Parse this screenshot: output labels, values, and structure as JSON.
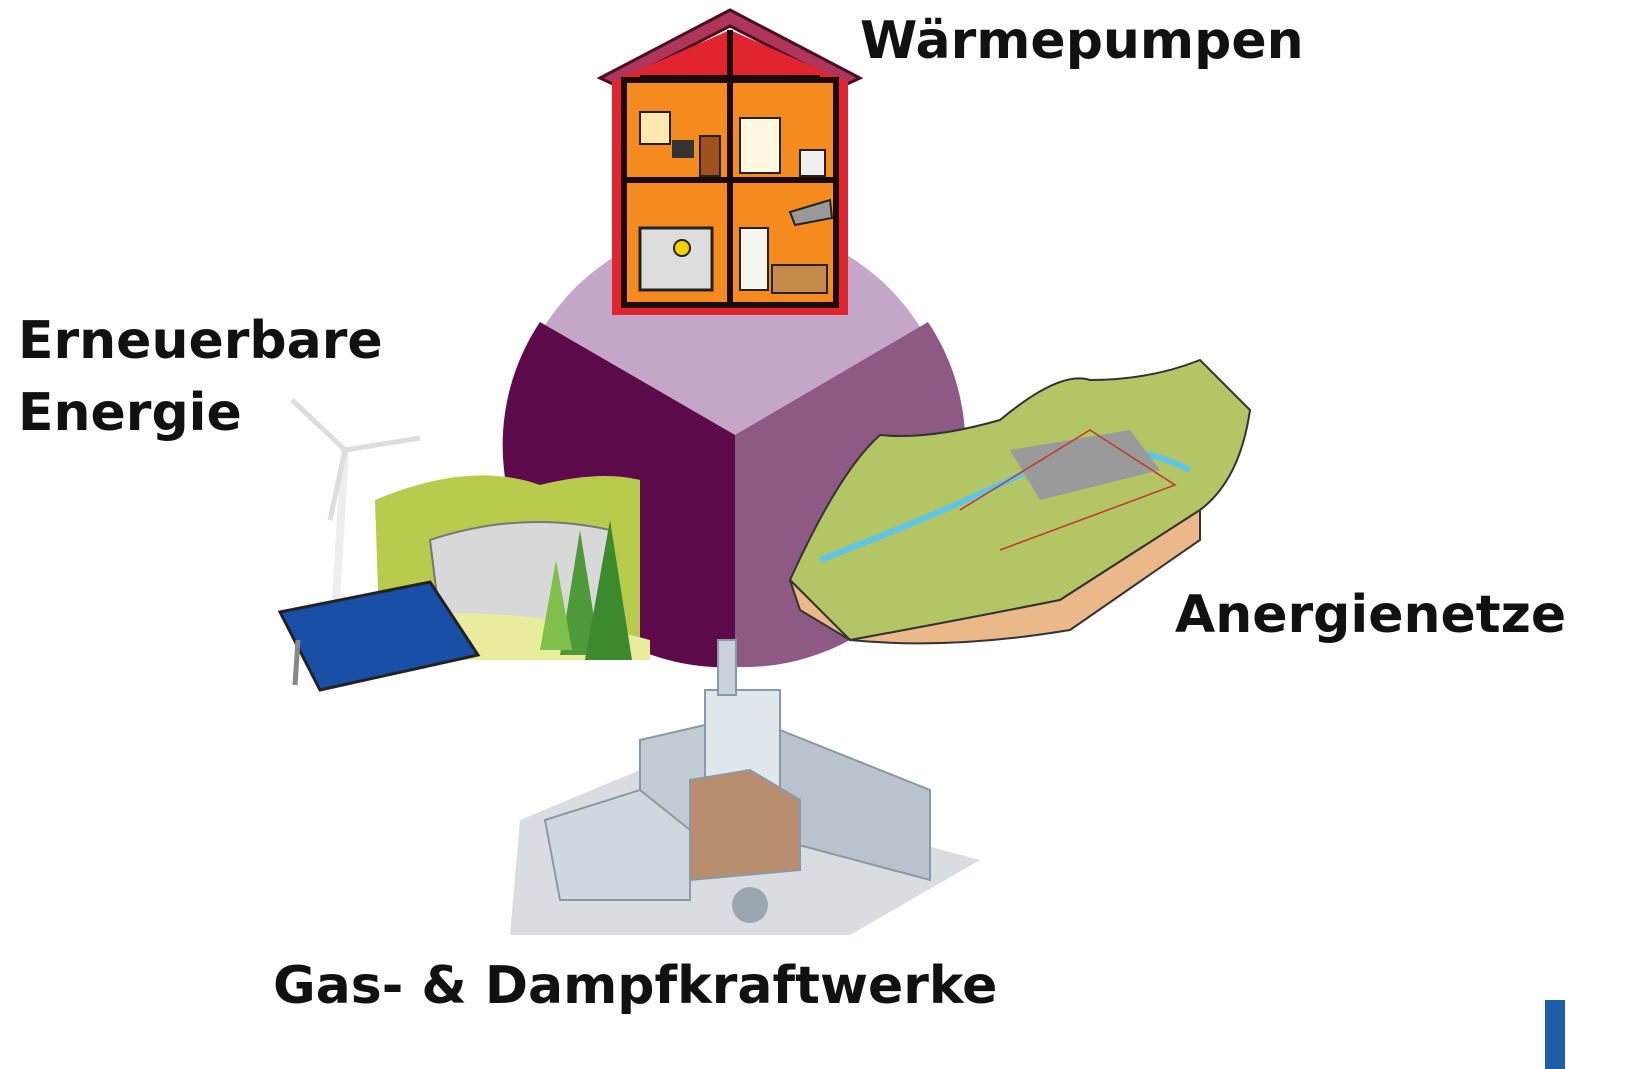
{
  "labels": {
    "heat_pumps": "Wärmepumpen",
    "renewables": [
      "Erneuerbare",
      "Energie"
    ],
    "anergy_networks": "Anergienetze",
    "power_plants": "Gas- & Dampfkraftwerke"
  }
}
